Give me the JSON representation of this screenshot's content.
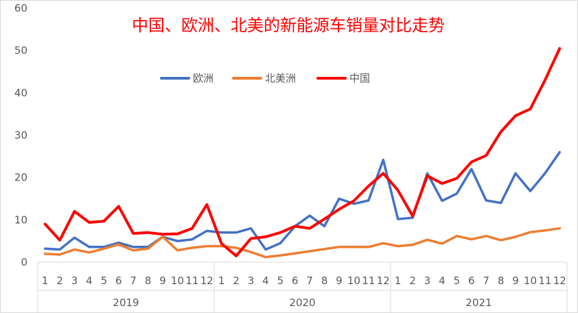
{
  "chart_data": {
    "type": "line",
    "title": "中国、欧洲、北美的新能源车销量对比走势",
    "xlabel": "",
    "ylabel": "",
    "ylim": [
      0,
      60
    ],
    "yticks": [
      0,
      10,
      20,
      30,
      40,
      50,
      60
    ],
    "grid": false,
    "legend_position": "top-center",
    "groups": [
      {
        "label": "2019",
        "months": [
          "1",
          "2",
          "3",
          "4",
          "5",
          "6",
          "7",
          "8",
          "9",
          "10",
          "11",
          "12"
        ]
      },
      {
        "label": "2020",
        "months": [
          "1",
          "2",
          "3",
          "4",
          "5",
          "6",
          "7",
          "8",
          "9",
          "10",
          "11",
          "12"
        ]
      },
      {
        "label": "2021",
        "months": [
          "1",
          "2",
          "3",
          "4",
          "5",
          "6",
          "7",
          "8",
          "9",
          "10",
          "11",
          "12"
        ]
      }
    ],
    "series": [
      {
        "name": "欧洲",
        "color": "#4472C4",
        "values": [
          3.2,
          3.0,
          5.8,
          3.6,
          3.6,
          4.6,
          3.6,
          3.6,
          6.0,
          5.0,
          5.4,
          7.4,
          7.0,
          7.0,
          8.0,
          3.0,
          4.5,
          8.5,
          11.0,
          8.5,
          15.0,
          13.8,
          14.6,
          24.2,
          10.2,
          10.5,
          21.0,
          14.5,
          16.2,
          22.0,
          14.6,
          14.0,
          21.0,
          16.8,
          21.0,
          26.0
        ]
      },
      {
        "name": "北美洲",
        "color": "#ED7D31",
        "values": [
          2.0,
          1.8,
          3.0,
          2.3,
          3.2,
          4.2,
          2.8,
          3.2,
          6.0,
          2.8,
          3.4,
          3.8,
          3.8,
          3.4,
          2.4,
          1.2,
          1.6,
          2.1,
          2.6,
          3.1,
          3.6,
          3.6,
          3.6,
          4.5,
          3.8,
          4.1,
          5.3,
          4.4,
          6.2,
          5.4,
          6.2,
          5.2,
          6.0,
          7.1,
          7.5,
          8.0
        ]
      },
      {
        "name": "中国",
        "color": "#FF0000",
        "values": [
          9.0,
          5.2,
          12.0,
          9.4,
          9.7,
          13.2,
          6.8,
          7.0,
          6.6,
          6.7,
          8.0,
          13.6,
          4.4,
          1.5,
          5.6,
          6.0,
          7.0,
          8.5,
          8.0,
          10.2,
          12.5,
          14.5,
          18.0,
          21.0,
          17.0,
          10.9,
          20.4,
          18.6,
          19.8,
          23.7,
          25.2,
          30.8,
          34.6,
          36.2,
          43.0,
          50.5
        ]
      }
    ]
  }
}
